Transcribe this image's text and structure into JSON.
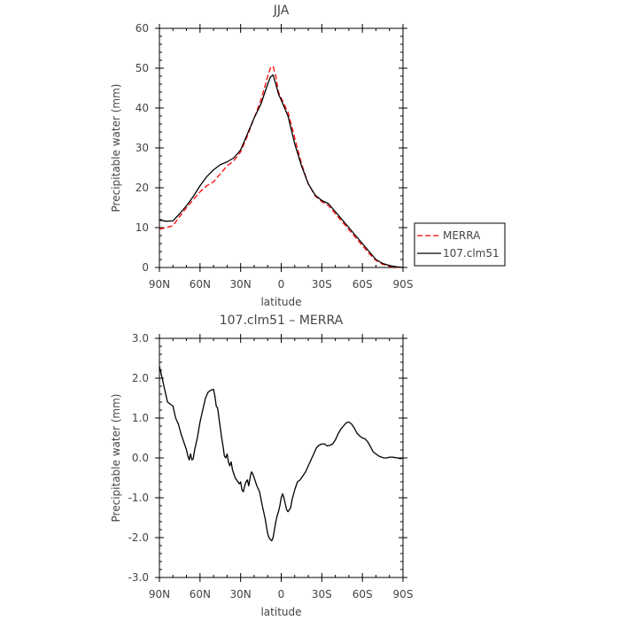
{
  "chart_data": [
    {
      "type": "line",
      "title": "JJA",
      "xlabel": "latitude",
      "ylabel": "Precipitable water (mm)",
      "x_ticks": [
        90,
        60,
        30,
        0,
        -30,
        -60,
        -90
      ],
      "x_tick_labels": [
        "90N",
        "60N",
        "30N",
        "0",
        "30S",
        "60S",
        "90S"
      ],
      "xlim": [
        90,
        -90
      ],
      "ylim": [
        0,
        60
      ],
      "y_ticks": [
        0,
        10,
        20,
        30,
        40,
        50,
        60
      ],
      "y_tick_labels": [
        "0",
        "10",
        "20",
        "30",
        "40",
        "50",
        "60"
      ],
      "grid": false,
      "legend_position": "right",
      "series": [
        {
          "name": "MERRA",
          "color": "#ff0000",
          "dash": "dashed",
          "x": [
            90,
            85,
            80,
            75,
            70,
            65,
            60,
            55,
            50,
            45,
            40,
            35,
            30,
            25,
            20,
            15,
            12,
            10,
            8,
            6,
            4,
            2,
            0,
            -5,
            -10,
            -15,
            -20,
            -25,
            -30,
            -35,
            -40,
            -45,
            -50,
            -55,
            -60,
            -65,
            -70,
            -75,
            -80,
            -85,
            -90
          ],
          "y": [
            9.6,
            10.0,
            10.5,
            12.8,
            15.0,
            17.0,
            19.0,
            20.5,
            21.5,
            23.5,
            25.5,
            26.8,
            29.0,
            33.0,
            37.5,
            42.0,
            45.5,
            48.0,
            50.0,
            50.5,
            48.0,
            44.0,
            42.5,
            39.0,
            32.5,
            26.0,
            21.0,
            18.0,
            16.5,
            15.5,
            13.5,
            11.5,
            9.5,
            7.5,
            5.5,
            3.5,
            1.8,
            0.8,
            0.3,
            0.1,
            0.0
          ]
        },
        {
          "name": "107.clm51",
          "color": "#000000",
          "dash": "solid",
          "x": [
            90,
            85,
            80,
            75,
            70,
            65,
            60,
            55,
            50,
            45,
            40,
            35,
            30,
            25,
            20,
            15,
            12,
            10,
            8,
            6,
            4,
            2,
            0,
            -5,
            -10,
            -15,
            -20,
            -25,
            -30,
            -35,
            -40,
            -45,
            -50,
            -55,
            -60,
            -65,
            -70,
            -75,
            -80,
            -85,
            -90
          ],
          "y": [
            11.9,
            11.6,
            11.7,
            13.5,
            15.5,
            17.8,
            20.5,
            22.8,
            24.5,
            25.8,
            26.5,
            27.5,
            29.5,
            33.5,
            37.5,
            41.0,
            44.0,
            46.0,
            47.8,
            48.3,
            46.0,
            43.5,
            42.0,
            38.0,
            31.0,
            25.5,
            21.0,
            18.2,
            16.8,
            16.0,
            14.0,
            12.0,
            10.0,
            8.0,
            6.0,
            4.0,
            2.0,
            1.0,
            0.5,
            0.2,
            0.0
          ]
        }
      ]
    },
    {
      "type": "line",
      "title": "107.clm51 – MERRA",
      "xlabel": "latitude",
      "ylabel": "Precipitable water (mm)",
      "x_ticks": [
        90,
        60,
        30,
        0,
        -30,
        -60,
        -90
      ],
      "x_tick_labels": [
        "90N",
        "60N",
        "30N",
        "0",
        "30S",
        "60S",
        "90S"
      ],
      "xlim": [
        90,
        -90
      ],
      "ylim": [
        -3.0,
        3.0
      ],
      "y_ticks": [
        -3,
        -2,
        -1,
        0,
        1,
        2,
        3
      ],
      "y_tick_labels": [
        "-3.0",
        "-2.0",
        "-1.0",
        "0.0",
        "1.0",
        "2.0",
        "3.0"
      ],
      "grid": false,
      "series": [
        {
          "color": "#000000",
          "dash": "solid",
          "x": [
            90,
            88,
            86,
            84,
            82,
            80,
            78,
            76,
            74,
            72,
            70,
            69,
            68,
            67,
            66,
            65,
            64,
            62,
            60,
            58,
            56,
            54,
            52,
            50,
            49,
            48,
            47,
            46,
            45,
            44,
            43,
            42,
            41,
            40,
            39,
            38,
            37,
            36,
            35,
            34,
            33,
            32,
            31,
            30,
            29,
            28,
            27,
            26,
            25,
            24,
            23,
            22,
            21,
            20,
            19,
            18,
            16,
            14,
            12,
            10,
            9,
            8,
            7,
            6,
            5,
            4,
            3,
            2,
            1,
            0,
            -1,
            -2,
            -3,
            -4,
            -5,
            -6,
            -7,
            -8,
            -10,
            -12,
            -14,
            -16,
            -18,
            -20,
            -22,
            -24,
            -26,
            -28,
            -30,
            -32,
            -34,
            -36,
            -38,
            -40,
            -42,
            -44,
            -46,
            -48,
            -50,
            -52,
            -54,
            -56,
            -58,
            -60,
            -62,
            -64,
            -66,
            -68,
            -70,
            -72,
            -74,
            -76,
            -78,
            -80,
            -82,
            -84,
            -86,
            -88,
            -90
          ],
          "y": [
            2.3,
            2.0,
            1.7,
            1.4,
            1.35,
            1.3,
            1.0,
            0.85,
            0.6,
            0.4,
            0.2,
            0.05,
            -0.05,
            0.1,
            -0.05,
            -0.02,
            0.2,
            0.5,
            0.9,
            1.2,
            1.5,
            1.65,
            1.7,
            1.72,
            1.55,
            1.3,
            1.25,
            1.0,
            0.75,
            0.5,
            0.3,
            0.05,
            0.0,
            0.1,
            -0.1,
            -0.2,
            -0.1,
            -0.3,
            -0.4,
            -0.5,
            -0.55,
            -0.6,
            -0.65,
            -0.6,
            -0.8,
            -0.85,
            -0.7,
            -0.6,
            -0.55,
            -0.7,
            -0.5,
            -0.35,
            -0.4,
            -0.5,
            -0.6,
            -0.7,
            -0.85,
            -1.2,
            -1.5,
            -1.9,
            -2.0,
            -2.05,
            -2.08,
            -2.0,
            -1.8,
            -1.6,
            -1.45,
            -1.35,
            -1.2,
            -1.0,
            -0.9,
            -1.0,
            -1.15,
            -1.3,
            -1.35,
            -1.3,
            -1.25,
            -1.05,
            -0.8,
            -0.6,
            -0.55,
            -0.45,
            -0.35,
            -0.2,
            -0.05,
            0.1,
            0.25,
            0.32,
            0.35,
            0.35,
            0.3,
            0.32,
            0.35,
            0.45,
            0.6,
            0.72,
            0.8,
            0.88,
            0.9,
            0.85,
            0.75,
            0.62,
            0.55,
            0.5,
            0.48,
            0.4,
            0.28,
            0.15,
            0.1,
            0.05,
            0.02,
            0.0,
            0.0,
            0.02,
            0.02,
            0.01,
            0.0,
            -0.02,
            0.0
          ]
        }
      ]
    }
  ]
}
